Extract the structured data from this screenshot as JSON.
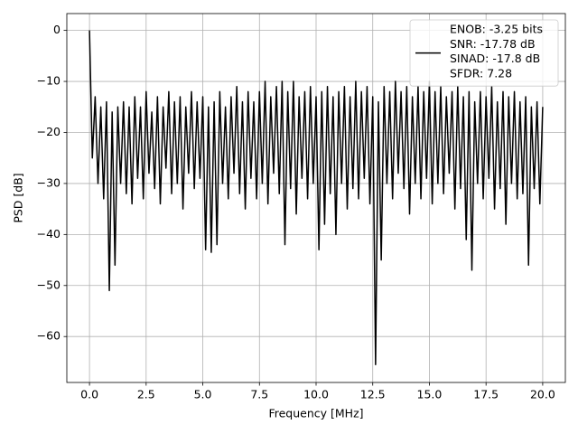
{
  "chart_data": {
    "type": "line",
    "xlabel": "Frequency [MHz]",
    "ylabel": "PSD [dB]",
    "x": [
      0,
      0.125,
      0.25,
      0.375,
      0.5,
      0.625,
      0.75,
      0.875,
      1,
      1.125,
      1.25,
      1.375,
      1.5,
      1.625,
      1.75,
      1.875,
      2,
      2.125,
      2.25,
      2.375,
      2.5,
      2.625,
      2.75,
      2.875,
      3,
      3.125,
      3.25,
      3.375,
      3.5,
      3.625,
      3.75,
      3.875,
      4,
      4.125,
      4.25,
      4.375,
      4.5,
      4.625,
      4.75,
      4.875,
      5,
      5.125,
      5.25,
      5.375,
      5.5,
      5.625,
      5.75,
      5.875,
      6,
      6.125,
      6.25,
      6.375,
      6.5,
      6.625,
      6.75,
      6.875,
      7,
      7.125,
      7.25,
      7.375,
      7.5,
      7.625,
      7.75,
      7.875,
      8,
      8.125,
      8.25,
      8.375,
      8.5,
      8.625,
      8.75,
      8.875,
      9,
      9.125,
      9.25,
      9.375,
      9.5,
      9.625,
      9.75,
      9.875,
      10,
      10.125,
      10.25,
      10.375,
      10.5,
      10.625,
      10.75,
      10.875,
      11,
      11.125,
      11.25,
      11.375,
      11.5,
      11.625,
      11.75,
      11.875,
      12,
      12.125,
      12.25,
      12.375,
      12.5,
      12.625,
      12.75,
      12.875,
      13,
      13.125,
      13.25,
      13.375,
      13.5,
      13.625,
      13.75,
      13.875,
      14,
      14.125,
      14.25,
      14.375,
      14.5,
      14.625,
      14.75,
      14.875,
      15,
      15.125,
      15.25,
      15.375,
      15.5,
      15.625,
      15.75,
      15.875,
      16,
      16.125,
      16.25,
      16.375,
      16.5,
      16.625,
      16.75,
      16.875,
      17,
      17.125,
      17.25,
      17.375,
      17.5,
      17.625,
      17.75,
      17.875,
      18,
      18.125,
      18.25,
      18.375,
      18.5,
      18.625,
      18.75,
      18.875,
      19,
      19.125,
      19.25,
      19.375,
      19.5,
      19.625,
      19.75,
      19.875,
      20
    ],
    "series": [
      {
        "name": [
          "ENOB: -3.25 bits",
          "SNR: -17.78 dB",
          "SINAD: -17.8 dB",
          "SFDR: 7.28"
        ],
        "color": "#000000",
        "values": [
          0,
          -25,
          -13,
          -30,
          -15,
          -33,
          -14,
          -51,
          -16,
          -46,
          -15,
          -30,
          -14,
          -32,
          -15,
          -34,
          -13,
          -29,
          -15,
          -33,
          -12,
          -28,
          -16,
          -31,
          -13,
          -34,
          -15,
          -27,
          -12,
          -32,
          -14,
          -30,
          -13,
          -35,
          -15,
          -28,
          -12,
          -31,
          -14,
          -29,
          -13,
          -43,
          -15,
          -43.5,
          -14,
          -42,
          -12,
          -30,
          -15,
          -33,
          -13,
          -28,
          -11,
          -32,
          -14,
          -35,
          -12,
          -29,
          -14,
          -33,
          -12,
          -30,
          -10,
          -34,
          -13,
          -28,
          -11,
          -32,
          -10,
          -42,
          -12,
          -31,
          -10,
          -36,
          -13,
          -29,
          -12,
          -33,
          -11,
          -30,
          -13,
          -43,
          -12,
          -38,
          -11,
          -32,
          -13,
          -40,
          -12,
          -30,
          -11,
          -35,
          -13,
          -31,
          -10,
          -33,
          -12,
          -29,
          -11,
          -34,
          -13,
          -65.5,
          -14,
          -45,
          -11,
          -30,
          -12,
          -33,
          -10,
          -28,
          -12,
          -31,
          -11,
          -36,
          -13,
          -30,
          -11,
          -33,
          -12,
          -29,
          -10,
          -34,
          -12,
          -30,
          -11,
          -32,
          -13,
          -28,
          -12,
          -35,
          -11,
          -31,
          -13,
          -41,
          -12,
          -47,
          -14,
          -30,
          -12,
          -33,
          -13,
          -29,
          -11,
          -35,
          -14,
          -31,
          -12,
          -38,
          -13,
          -30,
          -12,
          -33,
          -14,
          -32,
          -13,
          -46,
          -15,
          -31,
          -14,
          -34,
          -15
        ]
      }
    ],
    "xlim": [
      -1.0,
      21.0
    ],
    "xticks": [
      {
        "value": 0,
        "label": "0.0"
      },
      2.5,
      {
        "value": 5,
        "label": "5.0"
      },
      7.5,
      {
        "value": 10,
        "label": "10.0"
      },
      12.5,
      {
        "value": 15,
        "label": "15.0"
      },
      17.5,
      {
        "value": 20,
        "label": "20.0"
      }
    ],
    "ylim": [
      -69.0,
      3.3
    ],
    "yticks": [
      {
        "value": -60,
        "label": "−60"
      },
      {
        "value": -50,
        "label": "−50"
      },
      {
        "value": -40,
        "label": "−40"
      },
      {
        "value": -30,
        "label": "−30"
      },
      {
        "value": -20,
        "label": "−20"
      },
      {
        "value": -10,
        "label": "−10"
      },
      0
    ],
    "grid": true,
    "legend": "upper right"
  }
}
